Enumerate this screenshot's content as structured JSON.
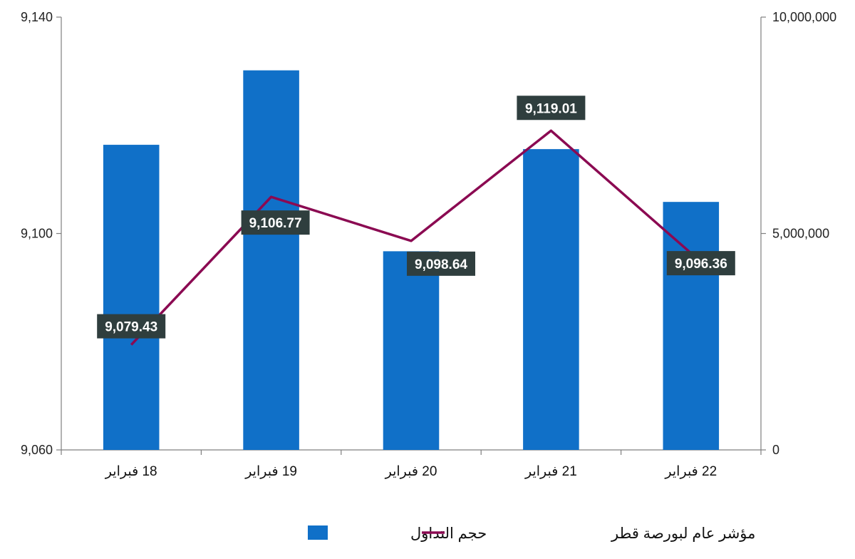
{
  "chart_data": {
    "type": "bar",
    "categories": [
      "18 فبراير",
      "19 فبراير",
      "20 فبراير",
      "21 فبراير",
      "22 فبراير"
    ],
    "series": [
      {
        "name": "حجم التداول",
        "type": "bar",
        "axis": "right",
        "color": "#1070C8",
        "values": [
          7050000,
          8770000,
          4590000,
          6950000,
          5730000
        ]
      },
      {
        "name": "مؤشر عام لبورصة قطر",
        "type": "line",
        "axis": "left",
        "color": "#8B0A52",
        "values": [
          9079.43,
          9106.77,
          9098.64,
          9119.01,
          9096.36
        ],
        "labels": [
          "9,079.43",
          "9,106.77",
          "9,098.64",
          "9,119.01",
          "9,096.36"
        ]
      }
    ],
    "y_left": {
      "min": 9060,
      "max": 9140,
      "ticks": [
        9060,
        9100,
        9140
      ],
      "tick_labels": [
        "9,060",
        "9,100",
        "9,140"
      ]
    },
    "y_right": {
      "min": 0,
      "max": 10000000,
      "ticks": [
        0,
        5000000,
        10000000
      ],
      "tick_labels": [
        "0",
        "5,000,000",
        "10,000,000"
      ]
    },
    "legend_position": "bottom-center",
    "grid": false,
    "label_box_color": "#2F3E3E"
  }
}
